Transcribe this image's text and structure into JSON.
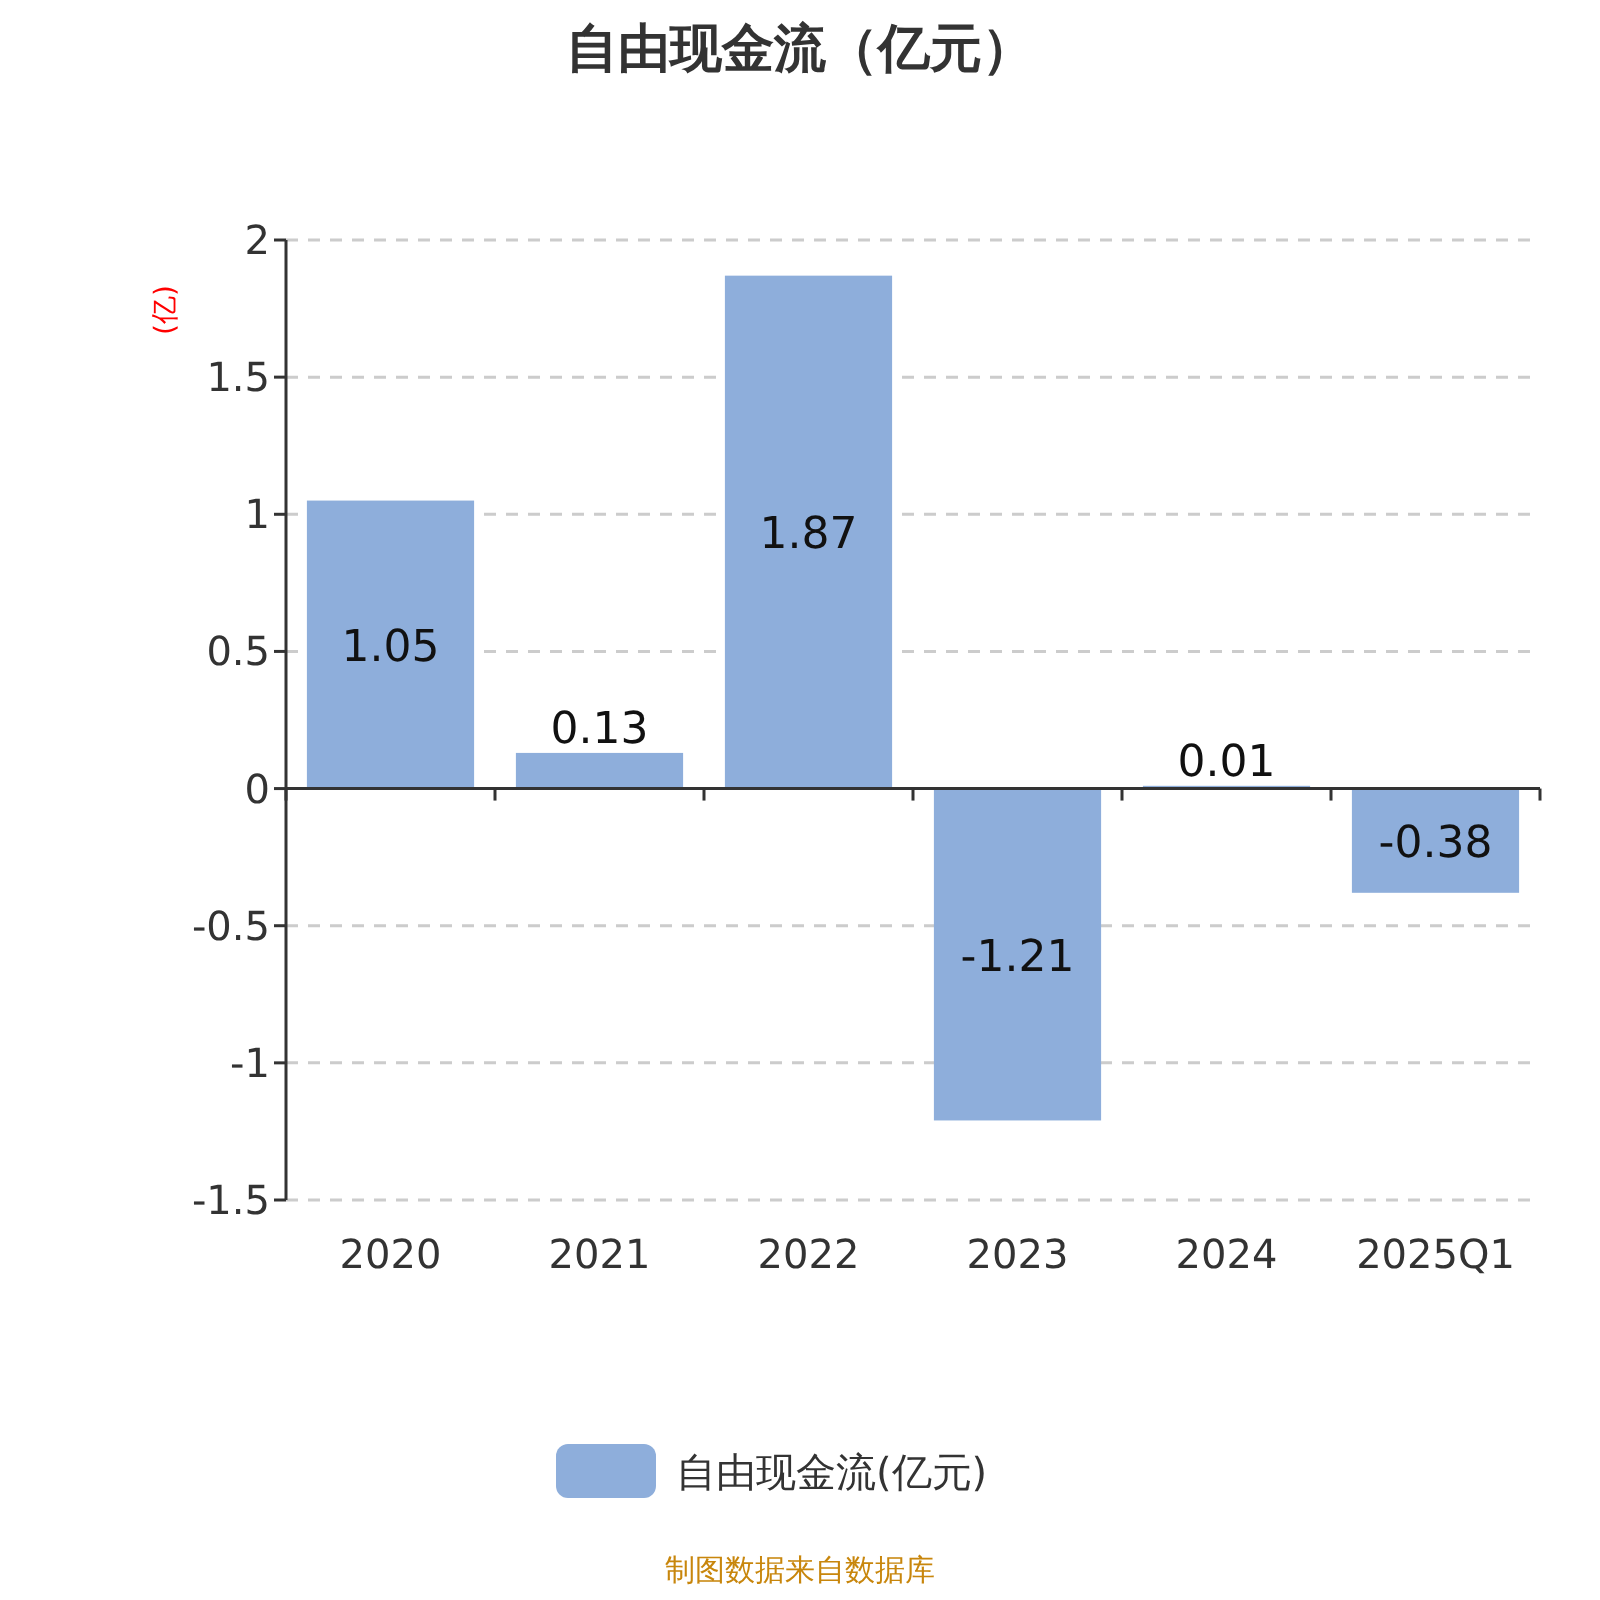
{
  "chart_data": {
    "type": "bar",
    "title": "自由现金流（亿元）",
    "ylabel": "(亿)",
    "categories": [
      "2020",
      "2021",
      "2022",
      "2023",
      "2024",
      "2025Q1"
    ],
    "series": [
      {
        "name": "自由现金流(亿元)",
        "color": "#8eaedb",
        "values": [
          1.05,
          0.13,
          1.87,
          -1.21,
          0.01,
          -0.38
        ]
      }
    ],
    "ylim": [
      -1.5,
      2
    ],
    "yticks": [
      -1.5,
      -1,
      -0.5,
      0,
      0.5,
      1,
      1.5,
      2
    ],
    "grid": "y",
    "legend": "bottom",
    "data_labels": true,
    "annotations": [
      "制图数据来自数据库"
    ]
  }
}
